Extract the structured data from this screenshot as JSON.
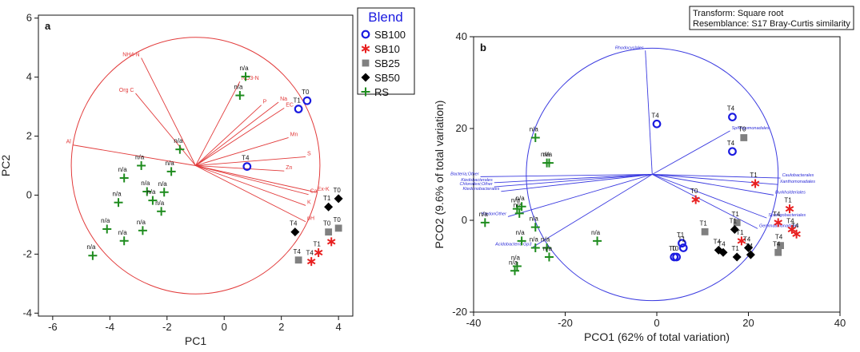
{
  "chart_data": [
    {
      "panel": "a",
      "type": "scatter",
      "xlabel": "PC1",
      "ylabel": "PC2",
      "xlim": [
        -6.5,
        4.5
      ],
      "ylim": [
        -4.1,
        6.1
      ],
      "xticks": [
        -6,
        -4,
        -2,
        0,
        2,
        4
      ],
      "yticks": [
        -4,
        -2,
        0,
        2,
        4,
        6
      ],
      "circle": {
        "cx": -1,
        "cy": 1,
        "r": 4.35,
        "color": "#e23b3b"
      },
      "vectors": [
        {
          "label": "NH4-N",
          "x": -2.9,
          "y": 4.65
        },
        {
          "label": "Org C",
          "x": -3.1,
          "y": 3.45
        },
        {
          "label": "NO3-N",
          "x": 0.55,
          "y": 3.85
        },
        {
          "label": "Na",
          "x": 1.9,
          "y": 3.15
        },
        {
          "label": "P",
          "x": 1.3,
          "y": 3.05
        },
        {
          "label": "EC",
          "x": 2.1,
          "y": 2.95
        },
        {
          "label": "Mn",
          "x": 2.25,
          "y": 1.95
        },
        {
          "label": "S",
          "x": 2.85,
          "y": 1.3
        },
        {
          "label": "Zn",
          "x": 2.1,
          "y": 0.82
        },
        {
          "label": "Ex-K",
          "x": 3.2,
          "y": 0.1
        },
        {
          "label": "Ca",
          "x": 2.95,
          "y": 0.02
        },
        {
          "label": "K",
          "x": 2.85,
          "y": -0.35
        },
        {
          "label": "pH",
          "x": 2.85,
          "y": -0.9
        },
        {
          "label": "Al",
          "x": -5.3,
          "y": 1.7
        }
      ],
      "series": [
        {
          "name": "SB100",
          "points": [
            {
              "x": 2.9,
              "y": 3.2,
              "label": "T0"
            },
            {
              "x": 2.6,
              "y": 2.92,
              "label": "T1"
            },
            {
              "x": 0.8,
              "y": 0.97,
              "label": "T4"
            }
          ]
        },
        {
          "name": "SB10",
          "points": [
            {
              "x": 3.3,
              "y": -1.95,
              "label": "T1"
            },
            {
              "x": 3.75,
              "y": -1.58,
              "label": ""
            },
            {
              "x": 3.05,
              "y": -2.25,
              "label": "T4"
            }
          ]
        },
        {
          "name": "SB25",
          "points": [
            {
              "x": 3.65,
              "y": -1.25,
              "label": "T0"
            },
            {
              "x": 4.0,
              "y": -1.12,
              "label": "T0"
            },
            {
              "x": 2.6,
              "y": -2.2,
              "label": "T4"
            }
          ]
        },
        {
          "name": "SB50",
          "points": [
            {
              "x": 4.0,
              "y": -0.12,
              "label": "T0"
            },
            {
              "x": 3.65,
              "y": -0.4,
              "label": "T1"
            },
            {
              "x": 2.48,
              "y": -1.25,
              "label": "T4"
            }
          ]
        },
        {
          "name": "RS",
          "points": [
            {
              "x": 0.75,
              "y": 4.02,
              "label": "n/a"
            },
            {
              "x": 0.55,
              "y": 3.38,
              "label": "n/a"
            },
            {
              "x": -1.55,
              "y": 1.55,
              "label": "n/a"
            },
            {
              "x": -2.9,
              "y": 1.0,
              "label": "n/a"
            },
            {
              "x": -1.85,
              "y": 0.8,
              "label": "n/a"
            },
            {
              "x": -3.5,
              "y": 0.58,
              "label": "n/a"
            },
            {
              "x": -2.7,
              "y": 0.12,
              "label": "n/a"
            },
            {
              "x": -2.5,
              "y": -0.18,
              "label": "n/a"
            },
            {
              "x": -2.1,
              "y": 0.1,
              "label": "n/a"
            },
            {
              "x": -3.7,
              "y": -0.25,
              "label": "n/a"
            },
            {
              "x": -2.2,
              "y": -0.55,
              "label": "n/a"
            },
            {
              "x": -4.1,
              "y": -1.15,
              "label": "n/a"
            },
            {
              "x": -2.85,
              "y": -1.2,
              "label": "n/a"
            },
            {
              "x": -3.5,
              "y": -1.55,
              "label": "n/a"
            },
            {
              "x": -4.6,
              "y": -2.05,
              "label": "n/a"
            }
          ]
        }
      ]
    },
    {
      "panel": "b",
      "type": "scatter",
      "xlabel": "PCO1 (62% of total variation)",
      "ylabel": "PCO2 (9.6% of total variation)",
      "xlim": [
        -40,
        40
      ],
      "ylim": [
        -20,
        40
      ],
      "xticks": [
        -40,
        -20,
        0,
        20,
        40
      ],
      "yticks": [
        -20,
        0,
        20,
        40
      ],
      "circle": {
        "cx": -1,
        "cy": 10,
        "r": 27.5,
        "color": "#3b3be0"
      },
      "vectors": [
        {
          "label": "Rhodocyclales",
          "x": -2.5,
          "y": 37
        },
        {
          "label": "Sphingomonadales",
          "x": 16,
          "y": 19.5
        },
        {
          "label": "Caulobacterales",
          "x": 27,
          "y": 9.2
        },
        {
          "label": "Xanthomonadales",
          "x": 26.5,
          "y": 7.8
        },
        {
          "label": "Burkholderiales",
          "x": 25.5,
          "y": 5.5
        },
        {
          "label": "Sphingobacteriales",
          "x": 24,
          "y": 0.5
        },
        {
          "label": "Gemmatimonadales",
          "x": 22,
          "y": -1.8
        },
        {
          "label": "Bacteria;Other",
          "x": -38.5,
          "y": 9.5
        },
        {
          "label": "Kiedobacterales",
          "x": -35.5,
          "y": 8.2
        },
        {
          "label": "Chloroflexi;Other",
          "x": -35.5,
          "y": 7.3
        },
        {
          "label": "Ktedonobacterales",
          "x": -34,
          "y": 6.3
        },
        {
          "label": "KtedonOther",
          "x": -32.5,
          "y": 0.8
        },
        {
          "label": "Acidobacteria Gp3",
          "x": -27,
          "y": -5.8
        }
      ],
      "series": [
        {
          "name": "SB100",
          "points": [
            {
              "x": 0,
              "y": 21,
              "label": "T4"
            },
            {
              "x": 16.5,
              "y": 22.5,
              "label": "T4"
            },
            {
              "x": 16.5,
              "y": 15,
              "label": "T4"
            },
            {
              "x": 5.5,
              "y": -5,
              "label": "T1"
            },
            {
              "x": 5.8,
              "y": -6,
              "label": "T1"
            },
            {
              "x": 3.8,
              "y": -8,
              "label": "T0"
            },
            {
              "x": 4.3,
              "y": -8,
              "label": "T0"
            }
          ]
        },
        {
          "name": "SB10",
          "points": [
            {
              "x": 21.5,
              "y": 8,
              "label": "T1"
            },
            {
              "x": 8.5,
              "y": 4.5,
              "label": "T0"
            },
            {
              "x": 29,
              "y": 2.5,
              "label": "T1"
            },
            {
              "x": 26.5,
              "y": -0.5,
              "label": "T4"
            },
            {
              "x": 29.5,
              "y": -2,
              "label": "T4"
            },
            {
              "x": 30.5,
              "y": -3,
              "label": "T4"
            },
            {
              "x": 18.5,
              "y": -4.5,
              "label": "T1"
            }
          ]
        },
        {
          "name": "SB25",
          "points": [
            {
              "x": 19,
              "y": 18,
              "label": "T0"
            },
            {
              "x": 17.5,
              "y": -0.5,
              "label": "T1"
            },
            {
              "x": 10.5,
              "y": -2.5,
              "label": "T1"
            },
            {
              "x": 27,
              "y": -5.5,
              "label": "T4"
            },
            {
              "x": 26.5,
              "y": -7,
              "label": "T4"
            }
          ]
        },
        {
          "name": "SB50",
          "points": [
            {
              "x": 17,
              "y": -2,
              "label": "T1"
            },
            {
              "x": 13.5,
              "y": -6.5,
              "label": "T4"
            },
            {
              "x": 14.5,
              "y": -7,
              "label": "T4"
            },
            {
              "x": 17.5,
              "y": -8,
              "label": "T1"
            },
            {
              "x": 20,
              "y": -6,
              "label": "T4"
            },
            {
              "x": 20.5,
              "y": -7.5,
              "label": "T4"
            }
          ]
        },
        {
          "name": "RS",
          "points": [
            {
              "x": -26.5,
              "y": 18,
              "label": "n/a"
            },
            {
              "x": -24,
              "y": 12.5,
              "label": "n/a"
            },
            {
              "x": -23.5,
              "y": 12.5,
              "label": "n/a"
            },
            {
              "x": -30.5,
              "y": 2.5,
              "label": "n/a"
            },
            {
              "x": -30,
              "y": 1.5,
              "label": "n/a"
            },
            {
              "x": -29.5,
              "y": 3,
              "label": "n/a"
            },
            {
              "x": -37.5,
              "y": -0.5,
              "label": "n/a"
            },
            {
              "x": -26.5,
              "y": -1.5,
              "label": "n/a"
            },
            {
              "x": -29.5,
              "y": -4.5,
              "label": "n/a"
            },
            {
              "x": -26.5,
              "y": -6,
              "label": "n/a"
            },
            {
              "x": -24,
              "y": -6,
              "label": "n/a"
            },
            {
              "x": -23.5,
              "y": -8,
              "label": "n/a"
            },
            {
              "x": -13,
              "y": -4.5,
              "label": "n/a"
            },
            {
              "x": -30.5,
              "y": -10,
              "label": "n/a"
            },
            {
              "x": -31,
              "y": -11,
              "label": "n/a"
            }
          ]
        }
      ]
    }
  ],
  "legend": {
    "title": "Blend",
    "items": [
      {
        "name": "SB100",
        "marker": "open-circle",
        "color": "#1a1ae0"
      },
      {
        "name": "SB10",
        "marker": "asterisk",
        "color": "#e82020"
      },
      {
        "name": "SB25",
        "marker": "square",
        "color": "#808080"
      },
      {
        "name": "SB50",
        "marker": "diamond",
        "color": "#000000"
      },
      {
        "name": "RS",
        "marker": "plus",
        "color": "#1e8c1e"
      }
    ]
  },
  "info_box": {
    "line1": "Transform: Square root",
    "line2": "Resemblance: S17 Bray-Curtis similarity"
  }
}
